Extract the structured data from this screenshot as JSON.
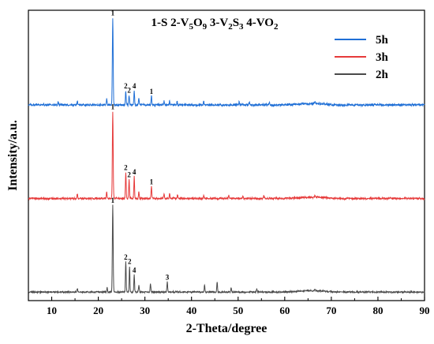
{
  "chart_data": {
    "type": "line",
    "title": {
      "segments": [
        {
          "text": "1-S  2-V",
          "sub": false
        },
        {
          "text": "5",
          "sub": true
        },
        {
          "text": "O",
          "sub": false
        },
        {
          "text": "9",
          "sub": true
        },
        {
          "text": " 3-V",
          "sub": false
        },
        {
          "text": "2",
          "sub": true
        },
        {
          "text": "S",
          "sub": false
        },
        {
          "text": "3",
          "sub": true
        },
        {
          "text": " 4-VO",
          "sub": false
        },
        {
          "text": "2",
          "sub": true
        }
      ]
    },
    "xlabel": "2-Theta/degree",
    "ylabel": "Intensity/a.u.",
    "xlim": [
      5,
      90
    ],
    "xticks": [
      10,
      20,
      30,
      40,
      50,
      60,
      70,
      80,
      90
    ],
    "xtick_labels": [
      "10",
      "20",
      "30",
      "40",
      "50",
      "60",
      "70",
      "80",
      "90"
    ],
    "ylim": [
      0,
      1
    ],
    "yticks_shown": false,
    "grid": false,
    "legend_position": "top-right",
    "series": [
      {
        "name": "5h",
        "color": "#1f6fd6",
        "offset": 0.665,
        "baseline": 0.04,
        "peaks": [
          {
            "x": 11.4,
            "y": 0.03
          },
          {
            "x": 15.5,
            "y": 0.05
          },
          {
            "x": 21.8,
            "y": 0.07
          },
          {
            "x": 23.1,
            "y": 1.0
          },
          {
            "x": 25.9,
            "y": 0.16
          },
          {
            "x": 26.6,
            "y": 0.11
          },
          {
            "x": 27.7,
            "y": 0.16
          },
          {
            "x": 28.7,
            "y": 0.08
          },
          {
            "x": 31.4,
            "y": 0.1
          },
          {
            "x": 34.1,
            "y": 0.04
          },
          {
            "x": 35.3,
            "y": 0.05
          },
          {
            "x": 36.9,
            "y": 0.04
          },
          {
            "x": 42.6,
            "y": 0.04
          },
          {
            "x": 50.2,
            "y": 0.03
          },
          {
            "x": 52.4,
            "y": 0.03
          },
          {
            "x": 56.7,
            "y": 0.03
          },
          {
            "x": 66.5,
            "y": 0.02
          }
        ],
        "peak_labels": [
          {
            "x": 23.1,
            "label": "1"
          },
          {
            "x": 25.9,
            "label": "2"
          },
          {
            "x": 26.6,
            "label": "2"
          },
          {
            "x": 27.7,
            "label": "4"
          },
          {
            "x": 31.4,
            "label": "1"
          }
        ]
      },
      {
        "name": "3h",
        "color": "#e63a3a",
        "offset": 0.345,
        "baseline": 0.03,
        "peaks": [
          {
            "x": 15.5,
            "y": 0.05
          },
          {
            "x": 21.8,
            "y": 0.07
          },
          {
            "x": 23.1,
            "y": 1.0
          },
          {
            "x": 25.9,
            "y": 0.3
          },
          {
            "x": 26.6,
            "y": 0.22
          },
          {
            "x": 27.7,
            "y": 0.25
          },
          {
            "x": 28.7,
            "y": 0.08
          },
          {
            "x": 31.4,
            "y": 0.14
          },
          {
            "x": 34.1,
            "y": 0.05
          },
          {
            "x": 35.3,
            "y": 0.06
          },
          {
            "x": 37.0,
            "y": 0.04
          },
          {
            "x": 42.6,
            "y": 0.03
          },
          {
            "x": 48.0,
            "y": 0.03
          },
          {
            "x": 51.0,
            "y": 0.03
          },
          {
            "x": 55.5,
            "y": 0.03
          },
          {
            "x": 66.5,
            "y": 0.02
          }
        ],
        "peak_labels": [
          {
            "x": 23.1,
            "label": "1"
          },
          {
            "x": 25.9,
            "label": "2"
          },
          {
            "x": 26.6,
            "label": "2"
          },
          {
            "x": 27.7,
            "label": "4"
          },
          {
            "x": 31.4,
            "label": "1"
          }
        ]
      },
      {
        "name": "2h",
        "color": "#4a4a4a",
        "offset": 0.025,
        "baseline": 0.02,
        "peaks": [
          {
            "x": 15.5,
            "y": 0.04
          },
          {
            "x": 21.9,
            "y": 0.05
          },
          {
            "x": 23.1,
            "y": 1.0
          },
          {
            "x": 25.9,
            "y": 0.35
          },
          {
            "x": 26.7,
            "y": 0.3
          },
          {
            "x": 27.7,
            "y": 0.2
          },
          {
            "x": 28.7,
            "y": 0.08
          },
          {
            "x": 31.2,
            "y": 0.1
          },
          {
            "x": 34.8,
            "y": 0.12
          },
          {
            "x": 42.8,
            "y": 0.08
          },
          {
            "x": 45.5,
            "y": 0.12
          },
          {
            "x": 48.5,
            "y": 0.05
          },
          {
            "x": 54.0,
            "y": 0.04
          },
          {
            "x": 66.5,
            "y": 0.02
          }
        ],
        "peak_labels": [
          {
            "x": 23.1,
            "label": "1"
          },
          {
            "x": 25.9,
            "label": "2"
          },
          {
            "x": 26.7,
            "label": "2"
          },
          {
            "x": 27.7,
            "label": "4"
          },
          {
            "x": 34.8,
            "label": "3"
          }
        ]
      }
    ]
  }
}
